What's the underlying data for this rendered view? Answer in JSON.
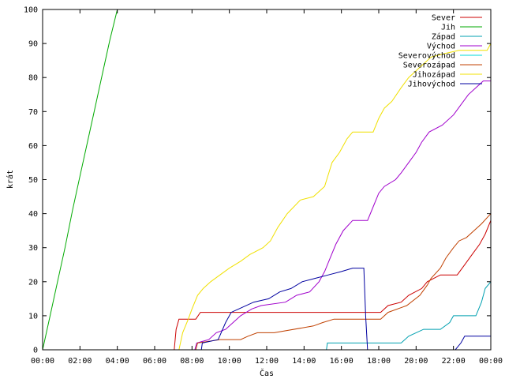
{
  "chart_data": {
    "type": "line",
    "xlabel": "Čas",
    "ylabel": "krát",
    "xlim": [
      0,
      24
    ],
    "ylim": [
      0,
      100
    ],
    "x_ticks": [
      {
        "value": 0,
        "label": "00:00"
      },
      {
        "value": 2,
        "label": "02:00"
      },
      {
        "value": 4,
        "label": "04:00"
      },
      {
        "value": 6,
        "label": "06:00"
      },
      {
        "value": 8,
        "label": "08:00"
      },
      {
        "value": 10,
        "label": "10:00"
      },
      {
        "value": 12,
        "label": "12:00"
      },
      {
        "value": 14,
        "label": "14:00"
      },
      {
        "value": 16,
        "label": "16:00"
      },
      {
        "value": 18,
        "label": "18:00"
      },
      {
        "value": 20,
        "label": "20:00"
      },
      {
        "value": 22,
        "label": "22:00"
      },
      {
        "value": 24,
        "label": "00:00"
      }
    ],
    "y_ticks": [
      0,
      10,
      20,
      30,
      40,
      50,
      60,
      70,
      80,
      90,
      100
    ],
    "grid": false,
    "legend_position": "top-right",
    "series": [
      {
        "name": "Sever",
        "color": "#cc0000",
        "points": [
          [
            0,
            0
          ],
          [
            7.05,
            0
          ],
          [
            7.15,
            6
          ],
          [
            7.3,
            9
          ],
          [
            8.2,
            9
          ],
          [
            8.45,
            11
          ],
          [
            13,
            11
          ],
          [
            17.7,
            11
          ],
          [
            18.1,
            11
          ],
          [
            18.5,
            13
          ],
          [
            19.2,
            14
          ],
          [
            19.6,
            16
          ],
          [
            20.3,
            18
          ],
          [
            20.6,
            20
          ],
          [
            21.3,
            22
          ],
          [
            22.2,
            22
          ],
          [
            22.6,
            25
          ],
          [
            23,
            28
          ],
          [
            23.4,
            31
          ],
          [
            23.7,
            34
          ],
          [
            24,
            38
          ]
        ]
      },
      {
        "name": "Jih",
        "color": "#00aa00",
        "points": [
          [
            0,
            0
          ],
          [
            0.4,
            10
          ],
          [
            0.8,
            20
          ],
          [
            1.2,
            30
          ],
          [
            1.6,
            41
          ],
          [
            2,
            51
          ],
          [
            2.4,
            61
          ],
          [
            2.8,
            71
          ],
          [
            3.2,
            81
          ],
          [
            3.6,
            91
          ],
          [
            4,
            100
          ]
        ]
      },
      {
        "name": "Západ",
        "color": "#00a0b0",
        "points": [
          [
            0,
            0
          ],
          [
            15.2,
            0
          ],
          [
            15.25,
            2
          ],
          [
            17.5,
            2
          ],
          [
            19.2,
            2
          ],
          [
            19.6,
            4
          ],
          [
            20.4,
            6
          ],
          [
            21.3,
            6
          ],
          [
            21.8,
            8
          ],
          [
            22,
            10
          ],
          [
            23.2,
            10
          ],
          [
            23.5,
            14
          ],
          [
            23.7,
            18
          ],
          [
            24,
            20
          ]
        ]
      },
      {
        "name": "Východ",
        "color": "#a000cc",
        "points": [
          [
            0,
            0
          ],
          [
            8.15,
            0
          ],
          [
            8.25,
            2
          ],
          [
            8.9,
            3
          ],
          [
            9.3,
            5
          ],
          [
            9.8,
            6
          ],
          [
            10.2,
            8
          ],
          [
            10.6,
            10
          ],
          [
            11.2,
            12
          ],
          [
            11.7,
            13
          ],
          [
            13,
            14
          ],
          [
            13.6,
            16
          ],
          [
            14.3,
            17
          ],
          [
            14.8,
            20
          ],
          [
            15.1,
            23
          ],
          [
            15.4,
            27
          ],
          [
            15.7,
            31
          ],
          [
            16.1,
            35
          ],
          [
            16.6,
            38
          ],
          [
            17.4,
            38
          ],
          [
            17.7,
            42
          ],
          [
            18,
            46
          ],
          [
            18.3,
            48
          ],
          [
            18.9,
            50
          ],
          [
            19.2,
            52
          ],
          [
            19.6,
            55
          ],
          [
            20,
            58
          ],
          [
            20.3,
            61
          ],
          [
            20.7,
            64
          ],
          [
            21.4,
            66
          ],
          [
            22,
            69
          ],
          [
            22.4,
            72
          ],
          [
            22.8,
            75
          ],
          [
            23.2,
            77
          ],
          [
            23.6,
            79
          ],
          [
            24,
            79
          ]
        ]
      },
      {
        "name": "Severovýchod",
        "color": "#00d8d8",
        "points": []
      },
      {
        "name": "Severozápad",
        "color": "#c04000",
        "points": [
          [
            0,
            0
          ],
          [
            8.2,
            0
          ],
          [
            8.3,
            2
          ],
          [
            9.5,
            3
          ],
          [
            10.6,
            3
          ],
          [
            11,
            4
          ],
          [
            11.5,
            5
          ],
          [
            12.4,
            5
          ],
          [
            14.5,
            7
          ],
          [
            15,
            8
          ],
          [
            15.6,
            9
          ],
          [
            17.9,
            9
          ],
          [
            18.1,
            9
          ],
          [
            18.5,
            11
          ],
          [
            19.5,
            13
          ],
          [
            20.2,
            16
          ],
          [
            20.6,
            19
          ],
          [
            20.8,
            21
          ],
          [
            21.3,
            24
          ],
          [
            21.6,
            27
          ],
          [
            22,
            30
          ],
          [
            22.3,
            32
          ],
          [
            22.7,
            33
          ],
          [
            23.1,
            35
          ],
          [
            23.5,
            37
          ],
          [
            24,
            40
          ]
        ]
      },
      {
        "name": "Jihozápad",
        "color": "#f0e000",
        "points": [
          [
            0,
            0
          ],
          [
            7.3,
            0
          ],
          [
            7.5,
            5
          ],
          [
            7.8,
            9
          ],
          [
            8,
            12
          ],
          [
            8.3,
            16
          ],
          [
            8.6,
            18
          ],
          [
            9,
            20
          ],
          [
            9.5,
            22
          ],
          [
            10,
            24
          ],
          [
            10.6,
            26
          ],
          [
            11.1,
            28
          ],
          [
            11.8,
            30
          ],
          [
            12.2,
            32
          ],
          [
            12.6,
            36
          ],
          [
            13.1,
            40
          ],
          [
            13.8,
            44
          ],
          [
            14.5,
            45
          ],
          [
            15.1,
            48
          ],
          [
            15.5,
            55
          ],
          [
            15.9,
            58
          ],
          [
            16.3,
            62
          ],
          [
            16.6,
            64
          ],
          [
            17.7,
            64
          ],
          [
            18,
            68
          ],
          [
            18.3,
            71
          ],
          [
            18.7,
            73
          ],
          [
            19.2,
            77
          ],
          [
            19.6,
            80
          ],
          [
            20.2,
            83
          ],
          [
            20.8,
            86
          ],
          [
            21.5,
            87
          ],
          [
            22.3,
            88
          ],
          [
            23.8,
            88
          ],
          [
            24,
            90
          ]
        ]
      },
      {
        "name": "Jihovýchod",
        "color": "#0000a0",
        "points": [
          [
            0,
            0
          ],
          [
            8.5,
            0
          ],
          [
            8.55,
            2
          ],
          [
            9.4,
            3
          ],
          [
            9.8,
            8
          ],
          [
            10.1,
            11
          ],
          [
            10.5,
            12
          ],
          [
            11.3,
            14
          ],
          [
            12.1,
            15
          ],
          [
            12.7,
            17
          ],
          [
            13.3,
            18
          ],
          [
            13.9,
            20
          ],
          [
            14.6,
            21
          ],
          [
            15.3,
            22
          ],
          [
            16,
            23
          ],
          [
            16.6,
            24
          ],
          [
            17.2,
            24
          ],
          [
            17.3,
            10
          ],
          [
            17.4,
            0
          ],
          [
            18.5,
            0
          ],
          [
            22.1,
            0
          ],
          [
            22.4,
            2
          ],
          [
            22.6,
            4
          ],
          [
            24,
            4
          ]
        ]
      }
    ]
  }
}
